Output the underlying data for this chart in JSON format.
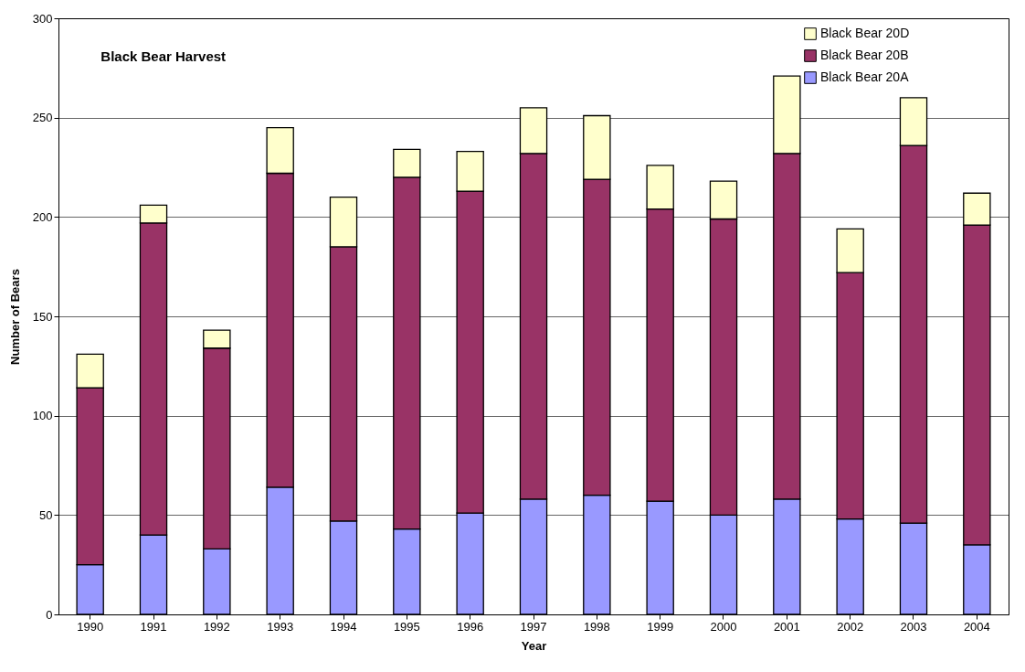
{
  "chart_data": {
    "type": "bar",
    "title": "Black Bear Harvest",
    "xlabel": "Year",
    "ylabel": "Number of Bears",
    "categories": [
      "1990",
      "1991",
      "1992",
      "1993",
      "1994",
      "1995",
      "1996",
      "1997",
      "1998",
      "1999",
      "2000",
      "2001",
      "2002",
      "2003",
      "2004"
    ],
    "stacked": true,
    "series": [
      {
        "name": "Black Bear 20A",
        "color": "#9999ff",
        "values": [
          25,
          40,
          33,
          64,
          47,
          43,
          51,
          58,
          60,
          57,
          50,
          58,
          48,
          46,
          35
        ]
      },
      {
        "name": "Black Bear 20B",
        "color": "#993366",
        "values": [
          89,
          157,
          101,
          158,
          138,
          177,
          162,
          174,
          159,
          147,
          149,
          174,
          124,
          190,
          161
        ]
      },
      {
        "name": "Black Bear 20D",
        "color": "#ffffcc",
        "values": [
          17,
          9,
          9,
          23,
          25,
          14,
          20,
          23,
          32,
          22,
          19,
          39,
          22,
          24,
          16
        ]
      }
    ],
    "ylim": [
      0,
      300
    ],
    "yticks": [
      0,
      50,
      100,
      150,
      200,
      250,
      300
    ],
    "grid": "y",
    "legend": "top right"
  }
}
